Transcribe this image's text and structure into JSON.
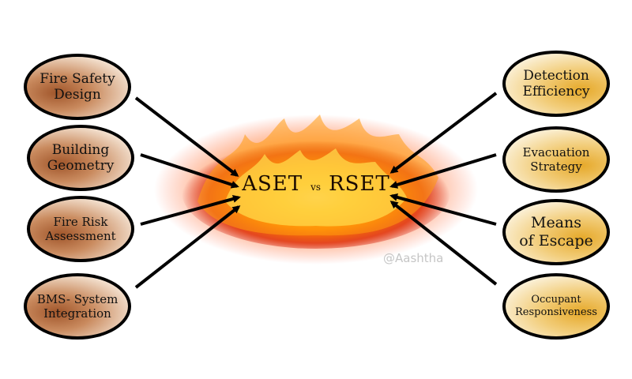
{
  "center": {
    "left": "ASET",
    "vs": "vs",
    "right": "RSET"
  },
  "left_factors": [
    {
      "label": "Fire Safety\nDesign"
    },
    {
      "label": "Building\nGeometry"
    },
    {
      "label": "Fire Risk\nAssessment"
    },
    {
      "label": "BMS- System\nIntegration"
    }
  ],
  "right_factors": [
    {
      "label": "Detection\nEfficiency"
    },
    {
      "label": "Evacuation\nStrategy"
    },
    {
      "label": "Means\nof Escape"
    },
    {
      "label": "Occupant\nResponsiveness"
    }
  ],
  "watermark": "@Aashtha",
  "colors": {
    "left_oval": "#a0552a",
    "right_oval": "#e6a92a",
    "fire_core": "#ffd21f",
    "fire_mid": "#ff7a00",
    "fire_outer": "#c8100a",
    "arrow": "#000000"
  }
}
